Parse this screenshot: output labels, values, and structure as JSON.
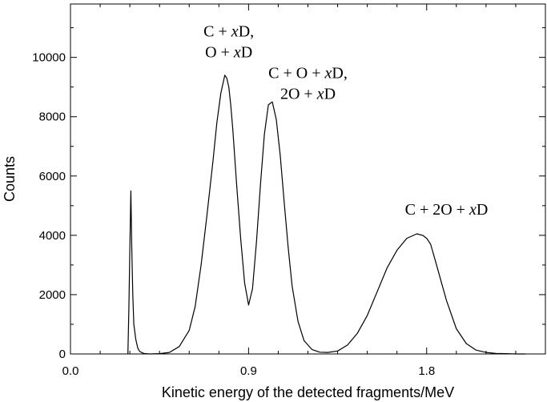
{
  "chart_data": {
    "type": "line",
    "title": "",
    "xlabel": "Kinetic energy of the detected fragments/MeV",
    "ylabel": "Counts",
    "xlim": [
      0.0,
      2.4
    ],
    "ylim": [
      0,
      11800
    ],
    "x_ticks": [
      {
        "value": 0.0,
        "label": "0.0"
      },
      {
        "value": 0.9,
        "label": "0.9"
      },
      {
        "value": 1.8,
        "label": "1.8"
      }
    ],
    "y_ticks": [
      {
        "value": 0,
        "label": "0"
      },
      {
        "value": 2000,
        "label": "2000"
      },
      {
        "value": 4000,
        "label": "4000"
      },
      {
        "value": 6000,
        "label": "6000"
      },
      {
        "value": 8000,
        "label": "8000"
      },
      {
        "value": 10000,
        "label": "10000"
      }
    ],
    "grid": false,
    "legend": "none",
    "line_color": "#000000",
    "annotations": [
      {
        "lines": [
          "C + xD,",
          "O + xD"
        ],
        "x": 0.8,
        "y": 10700
      },
      {
        "lines": [
          "C + O + xD,",
          "2O + xD"
        ],
        "x": 1.2,
        "y": 9300
      },
      {
        "lines": [
          "C + 2O + xD"
        ],
        "x": 1.9,
        "y": 4700
      }
    ],
    "series": [
      {
        "x": [
          0.29,
          0.295,
          0.3,
          0.305,
          0.31,
          0.315,
          0.32,
          0.33,
          0.34,
          0.35,
          0.37,
          0.4,
          0.45,
          0.5,
          0.55,
          0.6,
          0.63,
          0.66,
          0.69,
          0.72,
          0.74,
          0.76,
          0.78,
          0.79,
          0.8,
          0.81,
          0.82,
          0.84,
          0.86,
          0.88,
          0.9,
          0.92,
          0.94,
          0.96,
          0.98,
          1.0,
          1.02,
          1.04,
          1.06,
          1.08,
          1.1,
          1.12,
          1.15,
          1.18,
          1.22,
          1.26,
          1.3,
          1.35,
          1.4,
          1.45,
          1.5,
          1.55,
          1.6,
          1.65,
          1.7,
          1.75,
          1.78,
          1.8,
          1.82,
          1.85,
          1.9,
          1.95,
          2.0,
          2.05,
          2.1,
          2.15,
          2.2,
          2.25,
          2.3
        ],
        "y": [
          0,
          1500,
          3500,
          5500,
          3500,
          2000,
          1000,
          500,
          200,
          80,
          20,
          0,
          10,
          50,
          250,
          800,
          1600,
          3000,
          4700,
          6500,
          7800,
          8800,
          9400,
          9300,
          9000,
          8400,
          7600,
          5700,
          3900,
          2400,
          1650,
          2200,
          3800,
          5700,
          7400,
          8400,
          8500,
          7900,
          6700,
          5100,
          3600,
          2300,
          1100,
          450,
          150,
          60,
          50,
          100,
          300,
          700,
          1300,
          2100,
          2900,
          3500,
          3900,
          4050,
          4000,
          3900,
          3700,
          3000,
          1800,
          850,
          350,
          130,
          50,
          20,
          10,
          0,
          0
        ]
      }
    ]
  }
}
